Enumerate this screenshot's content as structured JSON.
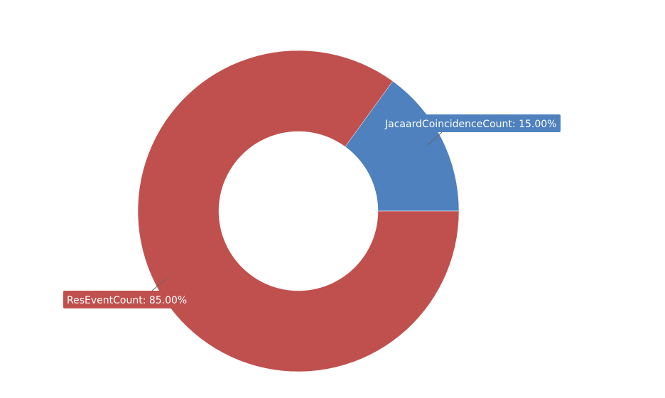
{
  "chart_data": {
    "type": "pie",
    "variant": "donut",
    "title": "",
    "series": [
      {
        "values": [
          {
            "name": "JacaardCoincidenceCount",
            "value": 15.0,
            "label": "JacaardCoincidenceCount: 15.00%",
            "color": "#4e81bd"
          },
          {
            "name": "ResEventCount",
            "value": 85.0,
            "label": "ResEventCount: 85.00%",
            "color": "#c0504e"
          }
        ]
      }
    ],
    "label_text_color": "#ffffff",
    "leader_line_color": "#666666",
    "background": "#ffffff"
  }
}
